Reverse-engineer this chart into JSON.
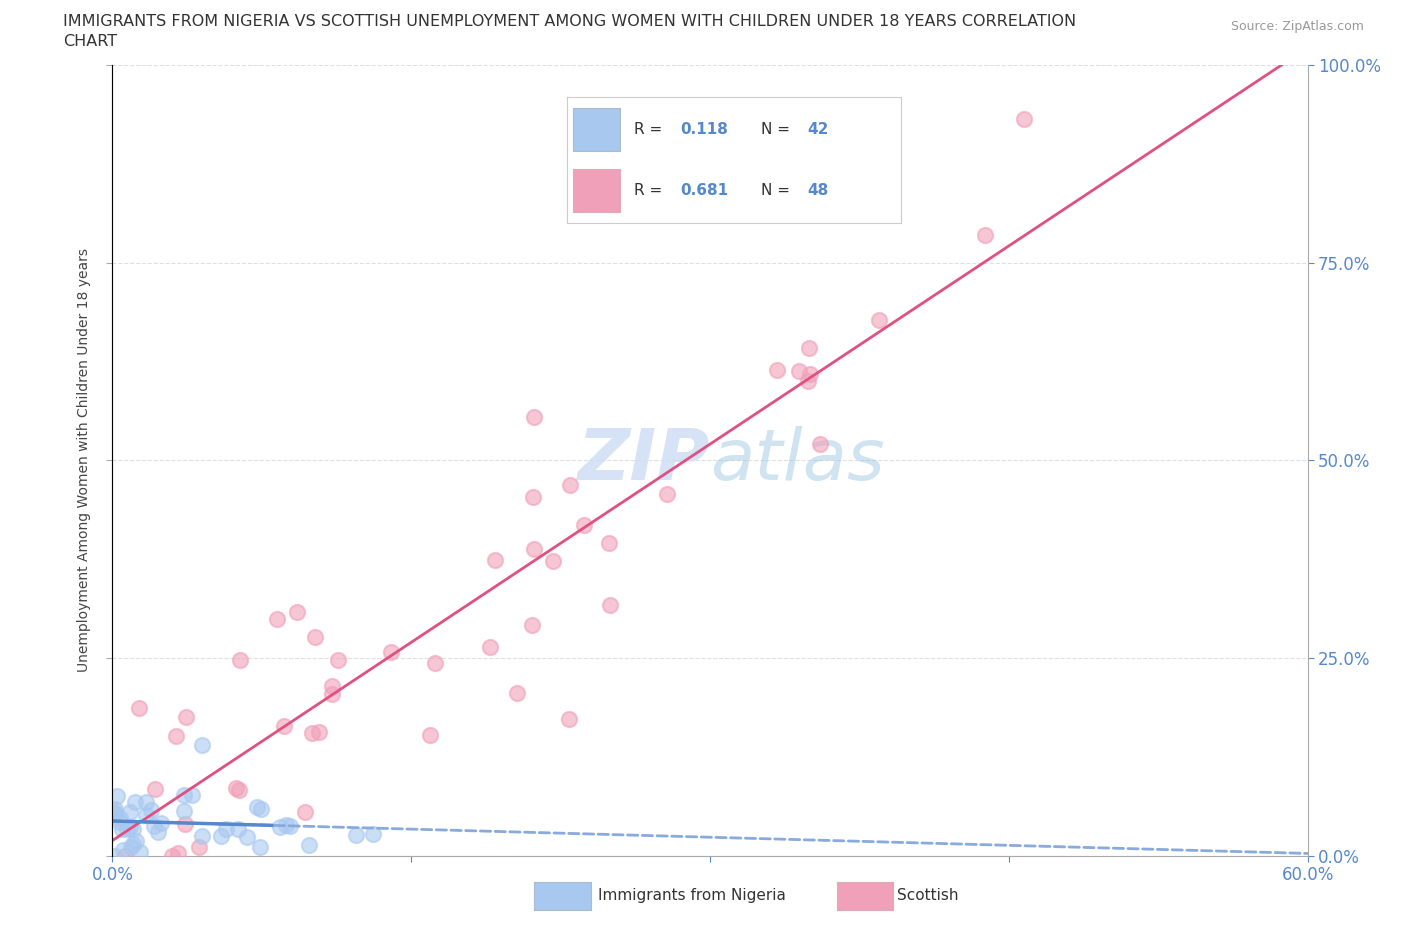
{
  "title_line1": "IMMIGRANTS FROM NIGERIA VS SCOTTISH UNEMPLOYMENT AMONG WOMEN WITH CHILDREN UNDER 18 YEARS CORRELATION",
  "title_line2": "CHART",
  "source": "Source: ZipAtlas.com",
  "ylabel": "Unemployment Among Women with Children Under 18 years",
  "ytick_labels": [
    "0.0%",
    "25.0%",
    "50.0%",
    "75.0%",
    "100.0%"
  ],
  "ytick_values": [
    0,
    25,
    50,
    75,
    100
  ],
  "r_nigeria": 0.118,
  "n_nigeria": 42,
  "r_scottish": 0.681,
  "n_scottish": 48,
  "color_nigeria": "#a8c8f0",
  "color_nigeria_dark": "#5588cc",
  "color_scottish": "#f0a0b8",
  "color_scottish_line": "#e05080",
  "color_nigeria_line": "#88aadd",
  "watermark_color": "#ccddf5",
  "xlim": [
    0,
    60
  ],
  "ylim": [
    0,
    100
  ],
  "bg_color": "#ffffff",
  "grid_color": "#dddddd",
  "xtick_positions": [
    0,
    15,
    30,
    45,
    60
  ],
  "xtick_labels_show": [
    "0.0%",
    "",
    "",
    "",
    "60.0%"
  ]
}
